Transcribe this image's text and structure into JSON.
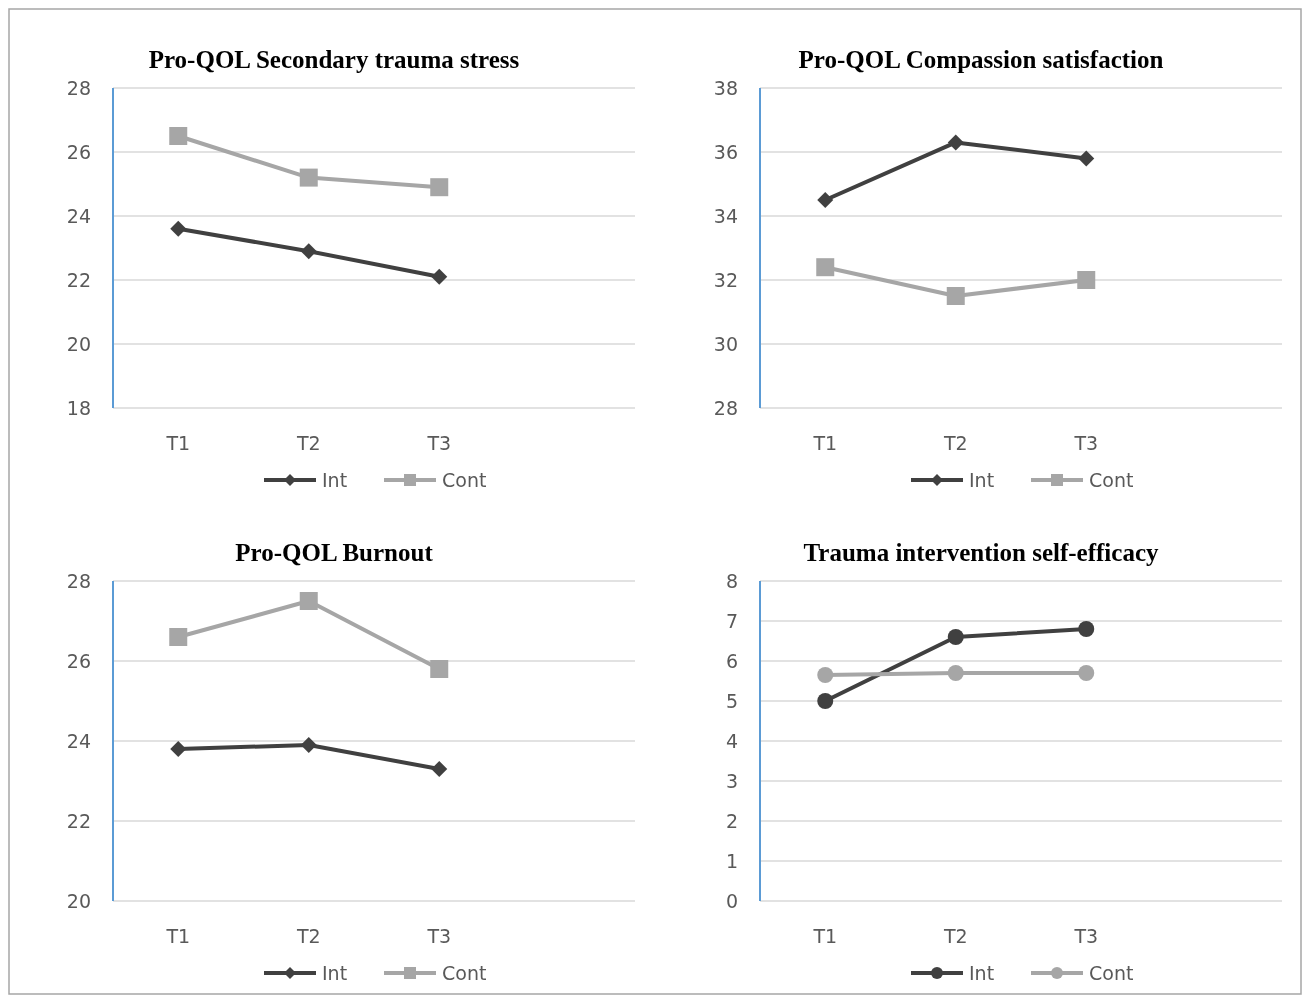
{
  "chart_data": [
    {
      "type": "line",
      "title": "Pro-QOL  Secondary trauma stress",
      "categories": [
        "T1",
        "T2",
        "T3",
        null
      ],
      "ylim": [
        18,
        28
      ],
      "yticks": [
        18,
        20,
        22,
        24,
        26,
        28
      ],
      "grid": "y",
      "legend": "bottom",
      "series": [
        {
          "name": "Int",
          "color": "#404040",
          "marker": "diamond",
          "values": [
            23.6,
            22.9,
            22.1,
            null
          ]
        },
        {
          "name": "Cont",
          "color": "#a6a6a6",
          "marker": "square",
          "values": [
            26.5,
            25.2,
            24.9,
            null
          ]
        }
      ]
    },
    {
      "type": "line",
      "title": "Pro-QOL  Compassion satisfaction",
      "categories": [
        "T1",
        "T2",
        "T3",
        null
      ],
      "ylim": [
        28,
        38
      ],
      "yticks": [
        28,
        30,
        32,
        34,
        36,
        38
      ],
      "grid": "y",
      "legend": "bottom",
      "series": [
        {
          "name": "Int",
          "color": "#404040",
          "marker": "diamond",
          "values": [
            34.5,
            36.3,
            35.8,
            null
          ]
        },
        {
          "name": "Cont",
          "color": "#a6a6a6",
          "marker": "square",
          "values": [
            32.4,
            31.5,
            32.0,
            null
          ]
        }
      ]
    },
    {
      "type": "line",
      "title": "Pro-QOL  Burnout",
      "categories": [
        "T1",
        "T2",
        "T3",
        null
      ],
      "ylim": [
        20,
        28
      ],
      "yticks": [
        20,
        22,
        24,
        26,
        28
      ],
      "grid": "y",
      "legend": "bottom",
      "series": [
        {
          "name": "Int",
          "color": "#404040",
          "marker": "diamond",
          "values": [
            23.8,
            23.9,
            23.3,
            null
          ]
        },
        {
          "name": "Cont",
          "color": "#a6a6a6",
          "marker": "square",
          "values": [
            26.6,
            27.5,
            25.8,
            null
          ]
        }
      ]
    },
    {
      "type": "line",
      "title": "Trauma intervention self-efficacy",
      "categories": [
        "T1",
        "T2",
        "T3",
        null
      ],
      "ylim": [
        0,
        8
      ],
      "yticks": [
        0,
        1,
        2,
        3,
        4,
        5,
        6,
        7,
        8
      ],
      "grid": "y",
      "legend": "bottom",
      "series": [
        {
          "name": "Int",
          "color": "#404040",
          "marker": "circle",
          "values": [
            5.0,
            6.6,
            6.8,
            null
          ]
        },
        {
          "name": "Cont",
          "color": "#a6a6a6",
          "marker": "circle",
          "values": [
            5.65,
            5.7,
            5.7,
            null
          ]
        }
      ]
    }
  ]
}
